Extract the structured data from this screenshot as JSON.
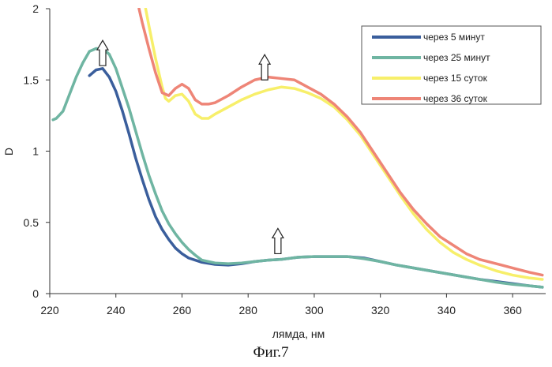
{
  "chart_data": {
    "type": "line",
    "xlabel": "лямда, нм",
    "ylabel": "D",
    "xlim": [
      220,
      370
    ],
    "ylim": [
      0,
      2
    ],
    "xticks": [
      "220",
      "240",
      "260",
      "280",
      "300",
      "320",
      "340",
      "360"
    ],
    "yticks": [
      "0",
      "0.5",
      "1",
      "1.5",
      "2"
    ],
    "grid": false,
    "legend_position": "top-right",
    "caption": "Фиг.7",
    "series": [
      {
        "name": "через 5 минут",
        "color": "#3a5e9c",
        "points": [
          [
            232,
            1.53
          ],
          [
            234,
            1.57
          ],
          [
            236,
            1.58
          ],
          [
            238,
            1.52
          ],
          [
            240,
            1.42
          ],
          [
            242,
            1.28
          ],
          [
            244,
            1.12
          ],
          [
            246,
            0.95
          ],
          [
            248,
            0.8
          ],
          [
            250,
            0.66
          ],
          [
            252,
            0.54
          ],
          [
            254,
            0.45
          ],
          [
            256,
            0.38
          ],
          [
            258,
            0.32
          ],
          [
            260,
            0.28
          ],
          [
            262,
            0.25
          ],
          [
            266,
            0.22
          ],
          [
            270,
            0.205
          ],
          [
            274,
            0.2
          ],
          [
            278,
            0.21
          ],
          [
            282,
            0.225
          ],
          [
            286,
            0.235
          ],
          [
            290,
            0.24
          ],
          [
            295,
            0.255
          ],
          [
            300,
            0.26
          ],
          [
            305,
            0.26
          ],
          [
            310,
            0.26
          ],
          [
            315,
            0.25
          ],
          [
            320,
            0.225
          ],
          [
            325,
            0.2
          ],
          [
            330,
            0.18
          ],
          [
            335,
            0.16
          ],
          [
            340,
            0.14
          ],
          [
            345,
            0.12
          ],
          [
            350,
            0.1
          ],
          [
            355,
            0.085
          ],
          [
            360,
            0.07
          ],
          [
            365,
            0.055
          ],
          [
            369,
            0.045
          ]
        ]
      },
      {
        "name": "через 25 минут",
        "color": "#6fb5a2",
        "points": [
          [
            221,
            1.22
          ],
          [
            222,
            1.23
          ],
          [
            224,
            1.28
          ],
          [
            226,
            1.4
          ],
          [
            228,
            1.52
          ],
          [
            230,
            1.62
          ],
          [
            232,
            1.7
          ],
          [
            234,
            1.72
          ],
          [
            236,
            1.72
          ],
          [
            238,
            1.68
          ],
          [
            240,
            1.58
          ],
          [
            242,
            1.44
          ],
          [
            244,
            1.3
          ],
          [
            246,
            1.14
          ],
          [
            248,
            0.98
          ],
          [
            250,
            0.83
          ],
          [
            252,
            0.7
          ],
          [
            254,
            0.58
          ],
          [
            256,
            0.49
          ],
          [
            258,
            0.42
          ],
          [
            260,
            0.36
          ],
          [
            262,
            0.31
          ],
          [
            264,
            0.27
          ],
          [
            266,
            0.235
          ],
          [
            270,
            0.215
          ],
          [
            274,
            0.21
          ],
          [
            278,
            0.215
          ],
          [
            282,
            0.225
          ],
          [
            286,
            0.235
          ],
          [
            290,
            0.24
          ],
          [
            295,
            0.255
          ],
          [
            300,
            0.26
          ],
          [
            305,
            0.26
          ],
          [
            310,
            0.26
          ],
          [
            315,
            0.245
          ],
          [
            320,
            0.225
          ],
          [
            325,
            0.2
          ],
          [
            330,
            0.18
          ],
          [
            335,
            0.16
          ],
          [
            340,
            0.14
          ],
          [
            345,
            0.12
          ],
          [
            350,
            0.1
          ],
          [
            355,
            0.08
          ],
          [
            360,
            0.065
          ],
          [
            365,
            0.055
          ],
          [
            369,
            0.045
          ]
        ]
      },
      {
        "name": "через 15 суток",
        "color": "#f7ef6a",
        "points": [
          [
            249,
            2.0
          ],
          [
            250,
            1.88
          ],
          [
            252,
            1.65
          ],
          [
            254,
            1.45
          ],
          [
            255,
            1.37
          ],
          [
            256,
            1.35
          ],
          [
            258,
            1.39
          ],
          [
            260,
            1.4
          ],
          [
            262,
            1.35
          ],
          [
            264,
            1.26
          ],
          [
            266,
            1.23
          ],
          [
            268,
            1.23
          ],
          [
            270,
            1.26
          ],
          [
            274,
            1.31
          ],
          [
            278,
            1.36
          ],
          [
            282,
            1.4
          ],
          [
            286,
            1.43
          ],
          [
            290,
            1.45
          ],
          [
            294,
            1.44
          ],
          [
            298,
            1.41
          ],
          [
            302,
            1.37
          ],
          [
            306,
            1.31
          ],
          [
            310,
            1.22
          ],
          [
            314,
            1.11
          ],
          [
            318,
            0.97
          ],
          [
            322,
            0.83
          ],
          [
            326,
            0.69
          ],
          [
            330,
            0.56
          ],
          [
            334,
            0.45
          ],
          [
            338,
            0.36
          ],
          [
            342,
            0.29
          ],
          [
            346,
            0.24
          ],
          [
            350,
            0.2
          ],
          [
            355,
            0.16
          ],
          [
            360,
            0.13
          ],
          [
            365,
            0.11
          ],
          [
            369,
            0.1
          ]
        ]
      },
      {
        "name": "через 36 суток",
        "color": "#ee8577",
        "points": [
          [
            247,
            2.0
          ],
          [
            248,
            1.9
          ],
          [
            250,
            1.72
          ],
          [
            252,
            1.55
          ],
          [
            254,
            1.41
          ],
          [
            256,
            1.39
          ],
          [
            258,
            1.44
          ],
          [
            260,
            1.47
          ],
          [
            262,
            1.44
          ],
          [
            264,
            1.36
          ],
          [
            266,
            1.33
          ],
          [
            268,
            1.33
          ],
          [
            270,
            1.34
          ],
          [
            274,
            1.39
          ],
          [
            278,
            1.45
          ],
          [
            282,
            1.5
          ],
          [
            286,
            1.52
          ],
          [
            290,
            1.51
          ],
          [
            294,
            1.5
          ],
          [
            298,
            1.45
          ],
          [
            302,
            1.4
          ],
          [
            306,
            1.33
          ],
          [
            310,
            1.24
          ],
          [
            314,
            1.13
          ],
          [
            318,
            0.99
          ],
          [
            322,
            0.85
          ],
          [
            326,
            0.71
          ],
          [
            330,
            0.59
          ],
          [
            334,
            0.49
          ],
          [
            338,
            0.4
          ],
          [
            342,
            0.34
          ],
          [
            346,
            0.28
          ],
          [
            350,
            0.24
          ],
          [
            355,
            0.21
          ],
          [
            360,
            0.18
          ],
          [
            365,
            0.15
          ],
          [
            369,
            0.13
          ]
        ]
      }
    ],
    "annotations": [
      {
        "type": "up-arrow",
        "x": 236,
        "y": 1.6
      },
      {
        "type": "up-arrow",
        "x": 285,
        "y": 1.5
      },
      {
        "type": "up-arrow",
        "x": 289,
        "y": 0.28
      }
    ]
  }
}
